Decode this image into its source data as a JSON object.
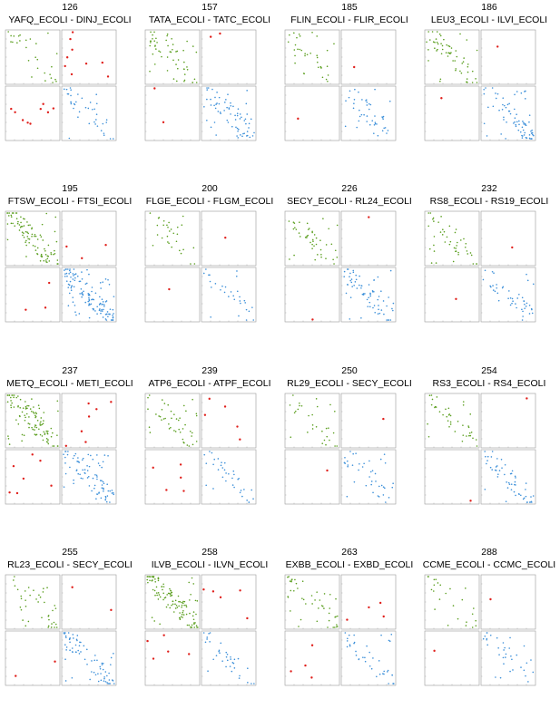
{
  "chart_data": {
    "type": "scatter",
    "layout": "small-multiples",
    "colors": {
      "intra_a": "#5a9e1e",
      "inter": "#e0201c",
      "intra_b": "#3b8fd9"
    },
    "panels": [
      {
        "id": "126",
        "pair": "YAFQ_ECOLI - DINJ_ECOLI",
        "n_green": 28,
        "n_red": 18,
        "n_blue": 40
      },
      {
        "id": "157",
        "pair": "TATA_ECOLI - TATC_ECOLI",
        "n_green": 55,
        "n_red": 4,
        "n_blue": 70
      },
      {
        "id": "185",
        "pair": "FLIN_ECOLI - FLIR_ECOLI",
        "n_green": 35,
        "n_red": 2,
        "n_blue": 45
      },
      {
        "id": "186",
        "pair": "LEU3_ECOLI - ILVI_ECOLI",
        "n_green": 60,
        "n_red": 2,
        "n_blue": 75
      },
      {
        "id": "195",
        "pair": "FTSW_ECOLI - FTSI_ECOLI",
        "n_green": 95,
        "n_red": 6,
        "n_blue": 130
      },
      {
        "id": "200",
        "pair": "FLGE_ECOLI - FLGM_ECOLI",
        "n_green": 30,
        "n_red": 2,
        "n_blue": 30
      },
      {
        "id": "226",
        "pair": "SECY_ECOLI - RL24_ECOLI",
        "n_green": 45,
        "n_red": 2,
        "n_blue": 70
      },
      {
        "id": "232",
        "pair": "RS8_ECOLI - RS19_ECOLI",
        "n_green": 45,
        "n_red": 2,
        "n_blue": 45
      },
      {
        "id": "237",
        "pair": "METQ_ECOLI - METI_ECOLI",
        "n_green": 110,
        "n_red": 14,
        "n_blue": 85
      },
      {
        "id": "239",
        "pair": "ATP6_ECOLI - ATPF_ECOLI",
        "n_green": 45,
        "n_red": 10,
        "n_blue": 35
      },
      {
        "id": "250",
        "pair": "RL29_ECOLI - SECY_ECOLI",
        "n_green": 30,
        "n_red": 2,
        "n_blue": 40
      },
      {
        "id": "254",
        "pair": "RS3_ECOLI - RS4_ECOLI",
        "n_green": 40,
        "n_red": 2,
        "n_blue": 55
      },
      {
        "id": "255",
        "pair": "RL23_ECOLI - SECY_ECOLI",
        "n_green": 40,
        "n_red": 4,
        "n_blue": 75
      },
      {
        "id": "258",
        "pair": "ILVB_ECOLI - ILVN_ECOLI",
        "n_green": 120,
        "n_red": 10,
        "n_blue": 35
      },
      {
        "id": "263",
        "pair": "EXBB_ECOLI - EXBD_ECOLI",
        "n_green": 45,
        "n_red": 8,
        "n_blue": 40
      },
      {
        "id": "288",
        "pair": "CCME_ECOLI - CCMC_ECOLI",
        "n_green": 25,
        "n_red": 2,
        "n_blue": 35
      }
    ]
  }
}
